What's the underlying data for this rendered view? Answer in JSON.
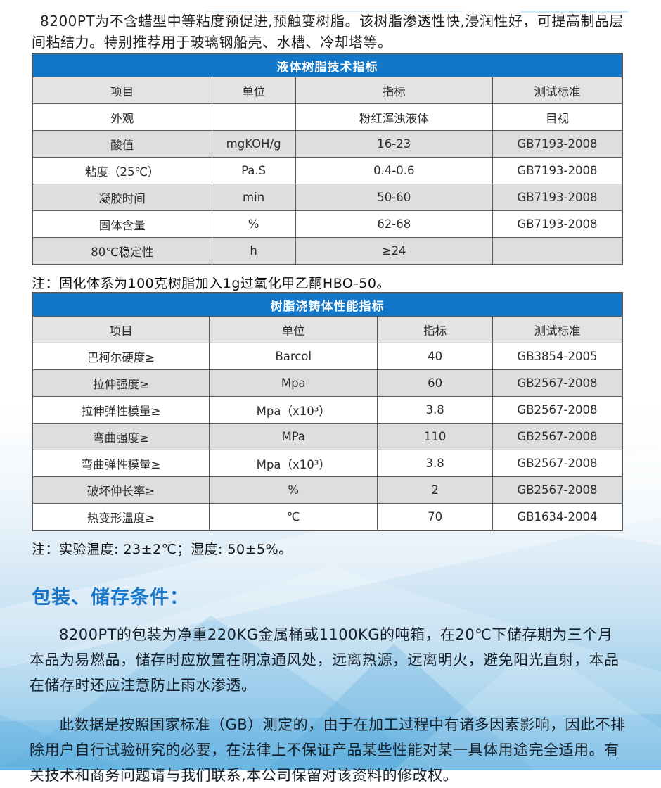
{
  "intro": "8200PT为不含蜡型中等粘度预促进,预触变树脂。该树脂渗透性快,浸润性好，可提高制品层间粘结力。特别推荐用于玻璃钢船壳、水槽、冷却塔等。",
  "table1": {
    "title": "液体树脂技术指标",
    "headers": [
      "项目",
      "单位",
      "指标",
      "测试标准"
    ],
    "rows": [
      [
        "外观",
        "",
        "粉红浑浊液体",
        "目视"
      ],
      [
        "酸值",
        "mgKOH/g",
        "16-23",
        "GB7193-2008"
      ],
      [
        "粘度（25℃）",
        "Pa.S",
        "0.4-0.6",
        "GB7193-2008"
      ],
      [
        "凝胶时间",
        "min",
        "50-60",
        "GB7193-2008"
      ],
      [
        "固体含量",
        "%",
        "62-68",
        "GB7193-2008"
      ],
      [
        "80℃稳定性",
        "h",
        "≥24",
        ""
      ]
    ],
    "note": "注：固化体系为100克树脂加入1g过氧化甲乙酮HBO-50。"
  },
  "table2": {
    "title": "树脂浇铸体性能指标",
    "headers": [
      "项目",
      "单位",
      "指标",
      "测试标准"
    ],
    "rows": [
      [
        "巴柯尔硬度≥",
        "Barcol",
        "40",
        "GB3854-2005"
      ],
      [
        "拉伸强度≥",
        "Mpa",
        "60",
        "GB2567-2008"
      ],
      [
        "拉伸弹性模量≥",
        "Mpa（x10³）",
        "3.8",
        "GB2567-2008"
      ],
      [
        "弯曲强度≥",
        "MPa",
        "110",
        "GB2567-2008"
      ],
      [
        "弯曲弹性模量≥",
        "Mpa（x10³）",
        "3.8",
        "GB2567-2008"
      ],
      [
        "破坏伸长率≥",
        "%",
        "2",
        "GB2567-2008"
      ],
      [
        "热变形温度≥",
        "℃",
        "70",
        "GB1634-2004"
      ]
    ],
    "note": "注：实验温度: 23±2℃；湿度: 50±5%。"
  },
  "section": {
    "heading": "包装、储存条件：",
    "para1": "8200PT的包装为净重220KG金属桶或1100KG的吨箱，在20℃下储存期为三个月 本品为易燃品，储存时应放置在阴凉通风处，远离热源，远离明火，避免阳光直射，本品在储存时还应注意防止雨水渗透。",
    "para2": "此数据是按照国家标准（GB）测定的，由于在加工过程中有诸多因素影响，因此不排除用户自行试验研究的必要，在法律上不保证产品某些性能对某一具体用途完全适用。有关技术和商务问题请与我们联系,本公司保留对该资料的修改权。"
  },
  "colors": {
    "table_header_bg": "#1277c8",
    "section_heading": "#1b77c9",
    "row_alt_gray": "#dedede",
    "column_header_gray": "#e3e3e3",
    "footer_blue": "#6fb8e3"
  }
}
